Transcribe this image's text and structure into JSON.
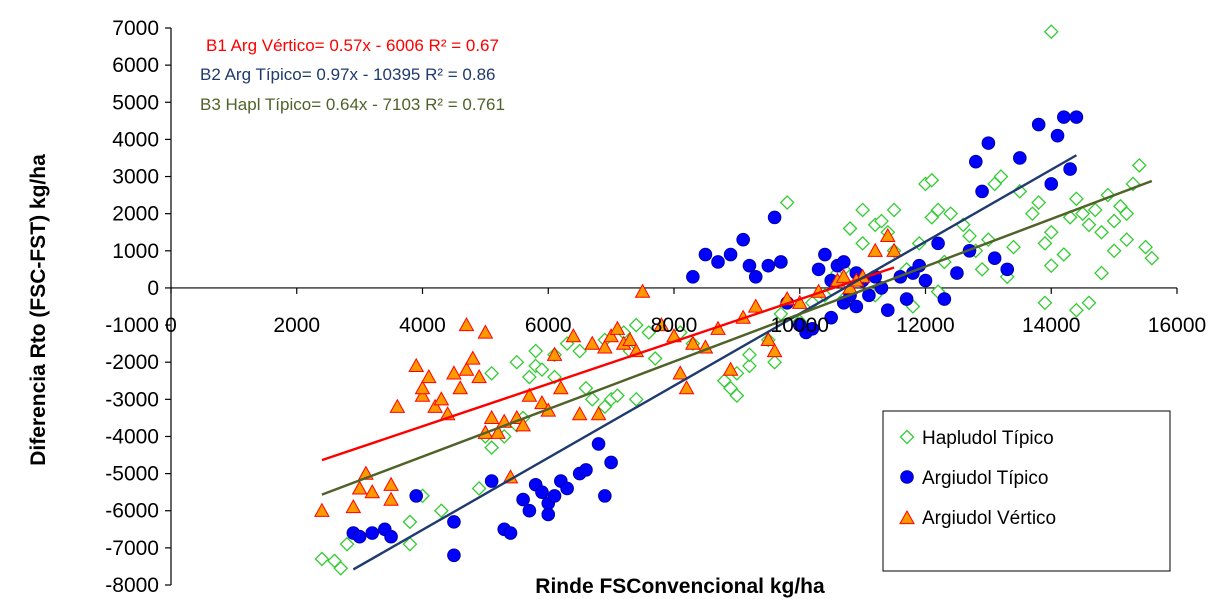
{
  "chart_data": {
    "type": "scatter",
    "title": "",
    "xlabel": "Rinde FSConvencional kg/ha",
    "ylabel": "Diferencia Rto (FSC-FST) kg/ha",
    "xlim": [
      0,
      16000
    ],
    "ylim": [
      -8000,
      7000
    ],
    "x_ticks": [
      0,
      2000,
      4000,
      6000,
      8000,
      10000,
      12000,
      14000,
      16000
    ],
    "y_ticks": [
      7000,
      6000,
      5000,
      4000,
      3000,
      2000,
      1000,
      0,
      -1000,
      -2000,
      -3000,
      -4000,
      -5000,
      -6000,
      -7000,
      -8000
    ],
    "grid": false,
    "legend": {
      "position": "bottom-right",
      "entries": [
        "Hapludol Típico",
        "Argiudol Típico",
        "Argiudol Vértico"
      ]
    },
    "equations": [
      {
        "text": "B1 Arg Vértico= 0.57x - 6006 R² = 0.67",
        "color": "#ff0000"
      },
      {
        "text": "B2 Arg Típico= 0.97x - 10395 R² = 0.86",
        "color": "#1f3a6e"
      },
      {
        "text": "B3 Hapl Típico= 0.64x - 7103 R² = 0.761",
        "color": "#4f6228"
      }
    ],
    "trendlines": [
      {
        "series": "Argiudol Vértico",
        "slope": 0.57,
        "intercept": -6006,
        "x_range": [
          2400,
          11500
        ],
        "color": "#ff0000"
      },
      {
        "series": "Argiudol Típico",
        "slope": 0.97,
        "intercept": -10395,
        "x_range": [
          2900,
          14400
        ],
        "color": "#1f3a6e"
      },
      {
        "series": "Hapludol Típico",
        "slope": 0.64,
        "intercept": -7103,
        "x_range": [
          2400,
          15600
        ],
        "color": "#4f6228"
      }
    ],
    "series": [
      {
        "name": "Hapludol Típico",
        "marker": "diamond",
        "color": "#33cc33",
        "fill": "#ffffff",
        "points": [
          [
            2400,
            -7300
          ],
          [
            2600,
            -7350
          ],
          [
            2700,
            -7550
          ],
          [
            2800,
            -6900
          ],
          [
            3800,
            -6900
          ],
          [
            4000,
            -5600
          ],
          [
            3800,
            -6300
          ],
          [
            4300,
            -6000
          ],
          [
            4900,
            -5400
          ],
          [
            5100,
            -4300
          ],
          [
            5000,
            -4000
          ],
          [
            5300,
            -4000
          ],
          [
            5100,
            -2300
          ],
          [
            5500,
            -3700
          ],
          [
            5600,
            -3500
          ],
          [
            5500,
            -2000
          ],
          [
            5700,
            -2400
          ],
          [
            5800,
            -2100
          ],
          [
            5900,
            -2200
          ],
          [
            6100,
            -2400
          ],
          [
            6100,
            -1800
          ],
          [
            5800,
            -1700
          ],
          [
            6300,
            -1500
          ],
          [
            6500,
            -1700
          ],
          [
            6600,
            -2700
          ],
          [
            6700,
            -3000
          ],
          [
            6900,
            -3200
          ],
          [
            7000,
            -3000
          ],
          [
            7100,
            -2900
          ],
          [
            6900,
            -1400
          ],
          [
            7200,
            -1200
          ],
          [
            7300,
            -1700
          ],
          [
            7400,
            -1000
          ],
          [
            7600,
            -1200
          ],
          [
            7700,
            -1900
          ],
          [
            7400,
            -3000
          ],
          [
            8100,
            -1200
          ],
          [
            8300,
            -1500
          ],
          [
            8800,
            -2500
          ],
          [
            8900,
            -2700
          ],
          [
            9000,
            -2900
          ],
          [
            9000,
            -2300
          ],
          [
            9200,
            -2100
          ],
          [
            9200,
            -1800
          ],
          [
            9500,
            -1400
          ],
          [
            9600,
            -2000
          ],
          [
            9700,
            -700
          ],
          [
            9800,
            2300
          ],
          [
            10000,
            -900
          ],
          [
            10200,
            -400
          ],
          [
            10400,
            -200
          ],
          [
            10600,
            400
          ],
          [
            10700,
            500
          ],
          [
            10800,
            1600
          ],
          [
            11000,
            2100
          ],
          [
            11000,
            1200
          ],
          [
            11200,
            1700
          ],
          [
            11300,
            1800
          ],
          [
            11400,
            1500
          ],
          [
            11500,
            2100
          ],
          [
            11500,
            1000
          ],
          [
            11700,
            500
          ],
          [
            11900,
            1200
          ],
          [
            12000,
            2800
          ],
          [
            12100,
            1900
          ],
          [
            12200,
            2100
          ],
          [
            12300,
            700
          ],
          [
            12400,
            2000
          ],
          [
            12600,
            1700
          ],
          [
            12800,
            1000
          ],
          [
            12900,
            500
          ],
          [
            13000,
            1300
          ],
          [
            13100,
            2800
          ],
          [
            13200,
            3000
          ],
          [
            13400,
            1100
          ],
          [
            13500,
            2600
          ],
          [
            13700,
            2000
          ],
          [
            13800,
            2300
          ],
          [
            13900,
            1200
          ],
          [
            14000,
            1500
          ],
          [
            14000,
            600
          ],
          [
            14200,
            900
          ],
          [
            14300,
            1900
          ],
          [
            14400,
            2400
          ],
          [
            14500,
            2000
          ],
          [
            14600,
            1700
          ],
          [
            14700,
            2100
          ],
          [
            14800,
            1500
          ],
          [
            14900,
            2500
          ],
          [
            15000,
            1800
          ],
          [
            15100,
            2200
          ],
          [
            15200,
            1300
          ],
          [
            15300,
            2800
          ],
          [
            15400,
            3300
          ],
          [
            15500,
            1100
          ],
          [
            15600,
            800
          ],
          [
            13900,
            -400
          ],
          [
            14400,
            -600
          ],
          [
            14600,
            -400
          ],
          [
            14800,
            400
          ],
          [
            15200,
            2000
          ],
          [
            15000,
            1000
          ],
          [
            13300,
            300
          ],
          [
            12700,
            1400
          ],
          [
            12200,
            -100
          ],
          [
            11800,
            -500
          ],
          [
            11200,
            -200
          ],
          [
            10700,
            -300
          ],
          [
            12100,
            2900
          ],
          [
            14000,
            6900
          ]
        ]
      },
      {
        "name": "Argiudol Típico",
        "marker": "circle",
        "color": "#0000ff",
        "points": [
          [
            2900,
            -6600
          ],
          [
            3000,
            -6700
          ],
          [
            3200,
            -6600
          ],
          [
            3400,
            -6500
          ],
          [
            3500,
            -6700
          ],
          [
            3900,
            -5600
          ],
          [
            4500,
            -6300
          ],
          [
            4500,
            -7200
          ],
          [
            5100,
            -5200
          ],
          [
            5300,
            -6500
          ],
          [
            5400,
            -6600
          ],
          [
            5600,
            -5700
          ],
          [
            5700,
            -6000
          ],
          [
            5800,
            -5300
          ],
          [
            5900,
            -5500
          ],
          [
            6000,
            -5800
          ],
          [
            6000,
            -6100
          ],
          [
            6100,
            -5600
          ],
          [
            6200,
            -5200
          ],
          [
            6300,
            -5400
          ],
          [
            6500,
            -5000
          ],
          [
            6600,
            -4900
          ],
          [
            6800,
            -4200
          ],
          [
            6900,
            -5600
          ],
          [
            7000,
            -4700
          ],
          [
            8300,
            300
          ],
          [
            8500,
            900
          ],
          [
            8700,
            700
          ],
          [
            8900,
            900
          ],
          [
            9100,
            1300
          ],
          [
            9200,
            600
          ],
          [
            9300,
            300
          ],
          [
            9500,
            600
          ],
          [
            9600,
            1900
          ],
          [
            9700,
            700
          ],
          [
            9800,
            -400
          ],
          [
            10000,
            -1000
          ],
          [
            10100,
            -1200
          ],
          [
            10200,
            -1100
          ],
          [
            10300,
            500
          ],
          [
            10400,
            900
          ],
          [
            10500,
            200
          ],
          [
            10600,
            600
          ],
          [
            10700,
            -400
          ],
          [
            10800,
            -200
          ],
          [
            10900,
            400
          ],
          [
            11000,
            200
          ],
          [
            11100,
            -200
          ],
          [
            11200,
            300
          ],
          [
            11300,
            0
          ],
          [
            11400,
            -600
          ],
          [
            11600,
            300
          ],
          [
            11700,
            -300
          ],
          [
            11800,
            400
          ],
          [
            12000,
            200
          ],
          [
            12200,
            1200
          ],
          [
            12500,
            400
          ],
          [
            12700,
            1000
          ],
          [
            12800,
            3400
          ],
          [
            12900,
            2600
          ],
          [
            13000,
            3900
          ],
          [
            13100,
            800
          ],
          [
            13300,
            500
          ],
          [
            13500,
            3500
          ],
          [
            13800,
            4400
          ],
          [
            14000,
            2800
          ],
          [
            14100,
            4100
          ],
          [
            14200,
            4600
          ],
          [
            14300,
            3200
          ],
          [
            14400,
            4600
          ],
          [
            12300,
            -300
          ],
          [
            11900,
            600
          ],
          [
            10500,
            -800
          ],
          [
            10700,
            700
          ],
          [
            10900,
            -500
          ]
        ]
      },
      {
        "name": "Argiudol Vértico",
        "marker": "triangle",
        "color": "#ff9900",
        "stroke": "#ff0000",
        "points": [
          [
            2400,
            -6000
          ],
          [
            2900,
            -5900
          ],
          [
            3000,
            -5400
          ],
          [
            3100,
            -5000
          ],
          [
            3200,
            -5500
          ],
          [
            3500,
            -5700
          ],
          [
            3500,
            -5300
          ],
          [
            3600,
            -3200
          ],
          [
            3900,
            -2100
          ],
          [
            4000,
            -2900
          ],
          [
            4000,
            -2700
          ],
          [
            4100,
            -2400
          ],
          [
            4200,
            -3200
          ],
          [
            4300,
            -3000
          ],
          [
            4400,
            -3400
          ],
          [
            4500,
            -2300
          ],
          [
            4600,
            -2700
          ],
          [
            4700,
            -1000
          ],
          [
            4700,
            -2200
          ],
          [
            4800,
            -1900
          ],
          [
            4900,
            -2400
          ],
          [
            5000,
            -1200
          ],
          [
            5000,
            -3900
          ],
          [
            5100,
            -3500
          ],
          [
            5200,
            -3900
          ],
          [
            5300,
            -3600
          ],
          [
            5400,
            -5100
          ],
          [
            5500,
            -3500
          ],
          [
            5600,
            -3700
          ],
          [
            5700,
            -2900
          ],
          [
            5900,
            -3100
          ],
          [
            6000,
            -3300
          ],
          [
            6100,
            -1800
          ],
          [
            6200,
            -2700
          ],
          [
            6400,
            -1300
          ],
          [
            6500,
            -3400
          ],
          [
            6700,
            -1500
          ],
          [
            6800,
            -3400
          ],
          [
            6900,
            -1600
          ],
          [
            7000,
            -1300
          ],
          [
            7100,
            -1100
          ],
          [
            7200,
            -1500
          ],
          [
            7300,
            -1400
          ],
          [
            7400,
            -1700
          ],
          [
            7500,
            -100
          ],
          [
            7800,
            -1000
          ],
          [
            8000,
            -1300
          ],
          [
            8100,
            -2300
          ],
          [
            8200,
            -2700
          ],
          [
            8300,
            -1500
          ],
          [
            8500,
            -1600
          ],
          [
            8700,
            -1100
          ],
          [
            8900,
            -2200
          ],
          [
            9100,
            -800
          ],
          [
            9300,
            -500
          ],
          [
            9500,
            -1400
          ],
          [
            9600,
            -1700
          ],
          [
            9800,
            -300
          ],
          [
            10000,
            -400
          ],
          [
            10300,
            -100
          ],
          [
            10600,
            200
          ],
          [
            10700,
            300
          ],
          [
            10800,
            0
          ],
          [
            11000,
            300
          ],
          [
            11200,
            1000
          ],
          [
            11400,
            1400
          ],
          [
            11500,
            1000
          ],
          [
            10900,
            200
          ]
        ]
      }
    ]
  }
}
